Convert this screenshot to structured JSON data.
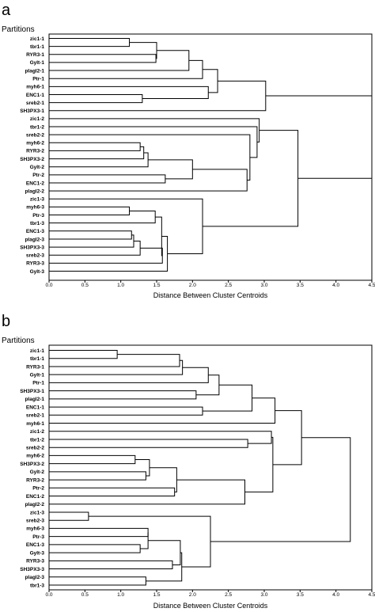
{
  "figure": {
    "panels": [
      {
        "letter": "a",
        "title": "Partitions",
        "axis_title": "Distance Between Cluster Centroids",
        "ticks": [
          "0.0",
          "0.5",
          "1.0",
          "1.5",
          "2.0",
          "2.5",
          "3.0",
          "3.5",
          "4.0",
          "4.5"
        ],
        "xlim": [
          0,
          4.5
        ],
        "leaves": [
          "zic1-1",
          "tbr1-1",
          "RYR3-1",
          "Gylt-1",
          "plagl2-1",
          "Ptr-1",
          "myh6-1",
          "ENC1-1",
          "sreb2-1",
          "SH3PX3-1",
          "zic1-2",
          "tbr1-2",
          "sreb2-2",
          "myh6-2",
          "RYR3-2",
          "SH3PX3-2",
          "Gylt-2",
          "Ptr-2",
          "ENC1-2",
          "plagl2-2",
          "zic1-3",
          "myh6-3",
          "Ptr-3",
          "tbr1-3",
          "ENC1-3",
          "plagl2-3",
          "SH3PX3-3",
          "sreb2-3",
          "RYR3-3",
          "Gylt-3"
        ],
        "merges": [
          [
            0,
            1,
            1.12
          ],
          [
            2,
            3,
            1.49
          ],
          [
            30,
            31,
            1.5
          ],
          [
            32,
            4,
            1.95
          ],
          [
            33,
            5,
            2.14
          ],
          [
            7,
            8,
            1.3
          ],
          [
            6,
            35,
            2.22
          ],
          [
            34,
            36,
            2.35
          ],
          [
            37,
            9,
            3.02
          ],
          [
            13,
            14,
            1.27
          ],
          [
            39,
            15,
            1.32
          ],
          [
            40,
            16,
            1.38
          ],
          [
            17,
            18,
            1.62
          ],
          [
            41,
            42,
            2.0
          ],
          [
            43,
            19,
            2.76
          ],
          [
            12,
            44,
            2.8
          ],
          [
            11,
            45,
            2.9
          ],
          [
            10,
            46,
            2.93
          ],
          [
            21,
            22,
            1.12
          ],
          [
            48,
            23,
            1.48
          ],
          [
            24,
            25,
            1.15
          ],
          [
            50,
            26,
            1.18
          ],
          [
            51,
            27,
            1.27
          ],
          [
            52,
            28,
            1.58
          ],
          [
            49,
            53,
            1.57
          ],
          [
            54,
            29,
            1.65
          ],
          [
            20,
            55,
            2.14
          ],
          [
            47,
            56,
            3.47
          ],
          [
            38,
            57,
            4.5
          ]
        ]
      },
      {
        "letter": "b",
        "title": "Partitions",
        "axis_title": "Distance Between Cluster Centroids",
        "ticks": [
          "0.0",
          "0.5",
          "1.0",
          "1.5",
          "2.0",
          "2.5",
          "3.0",
          "3.5",
          "4.0",
          "4.5"
        ],
        "xlim": [
          0,
          4.5
        ],
        "leaves": [
          "zic1-1",
          "tbr1-1",
          "RYR3-1",
          "Gylt-1",
          "Ptr-1",
          "SH3PX3-1",
          "plagl2-1",
          "ENC1-1",
          "sreb2-1",
          "myh6-1",
          "zic1-2",
          "tbr1-2",
          "sreb2-2",
          "myh6-2",
          "SH3PX3-2",
          "Gylt-2",
          "RYR3-2",
          "Ptr-2",
          "ENC1-2",
          "plagl2-2",
          "zic1-3",
          "sreb2-3",
          "myh6-3",
          "Ptr-3",
          "ENC1-3",
          "Gylt-3",
          "RYR3-3",
          "SH3PX3-3",
          "plagl2-3",
          "tbr1-3"
        ],
        "merges": [
          [
            0,
            1,
            0.95
          ],
          [
            30,
            2,
            1.82
          ],
          [
            31,
            3,
            1.86
          ],
          [
            32,
            4,
            2.22
          ],
          [
            5,
            6,
            2.05
          ],
          [
            33,
            34,
            2.37
          ],
          [
            7,
            8,
            2.14
          ],
          [
            35,
            36,
            2.83
          ],
          [
            37,
            9,
            3.15
          ],
          [
            13,
            14,
            1.2
          ],
          [
            15,
            16,
            1.35
          ],
          [
            39,
            40,
            1.4
          ],
          [
            17,
            18,
            1.75
          ],
          [
            41,
            42,
            1.78
          ],
          [
            43,
            19,
            2.73
          ],
          [
            11,
            12,
            2.77
          ],
          [
            10,
            45,
            3.1
          ],
          [
            46,
            44,
            3.12
          ],
          [
            38,
            47,
            3.52
          ],
          [
            20,
            21,
            0.55
          ],
          [
            22,
            23,
            1.38
          ],
          [
            24,
            25,
            1.27
          ],
          [
            50,
            51,
            1.38
          ],
          [
            26,
            27,
            1.72
          ],
          [
            52,
            53,
            1.83
          ],
          [
            28,
            29,
            1.35
          ],
          [
            54,
            55,
            1.85
          ],
          [
            49,
            56,
            2.25
          ],
          [
            48,
            57,
            4.2
          ]
        ]
      }
    ]
  }
}
